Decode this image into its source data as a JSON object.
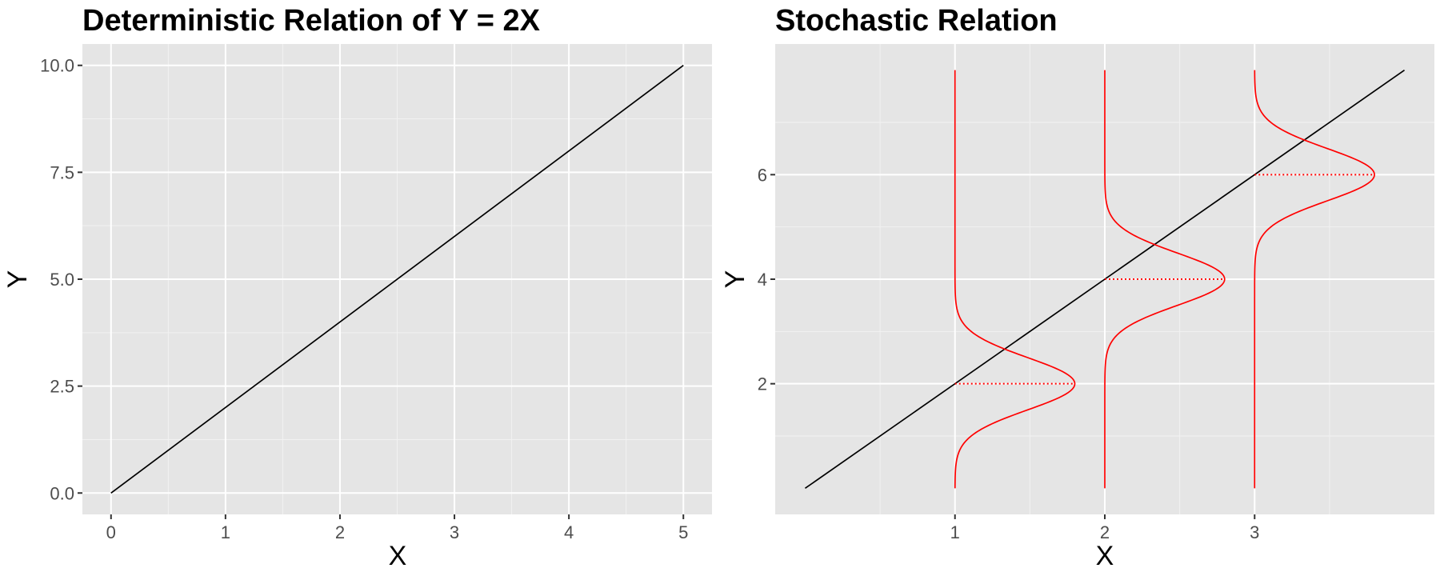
{
  "chart_data": [
    {
      "type": "line",
      "title": "Deterministic Relation of Y = 2X",
      "xlabel": "X",
      "ylabel": "Y",
      "xlim": [
        -0.25,
        5.25
      ],
      "ylim": [
        -0.5,
        10.5
      ],
      "x_ticks": [
        0,
        1,
        2,
        3,
        4,
        5
      ],
      "x_tick_labels": [
        "0",
        "1",
        "2",
        "3",
        "4",
        "5"
      ],
      "y_ticks": [
        0,
        2.5,
        5,
        7.5,
        10
      ],
      "y_tick_labels": [
        "0.0",
        "2.5",
        "5.0",
        "7.5",
        "10.0"
      ],
      "grid": true,
      "series": [
        {
          "x": [
            0,
            5
          ],
          "y": [
            0,
            10
          ],
          "color": "#000000"
        }
      ]
    },
    {
      "type": "line",
      "title": "Stochastic Relation",
      "xlabel": "X",
      "ylabel": "Y",
      "xlim": [
        -0.2,
        4.2
      ],
      "ylim": [
        -0.5,
        8.5
      ],
      "x_ticks": [
        1,
        2,
        3
      ],
      "x_tick_labels": [
        "1",
        "2",
        "3"
      ],
      "y_ticks": [
        2,
        4,
        6
      ],
      "y_tick_labels": [
        "2",
        "4",
        "6"
      ],
      "minor_x_ticks": [
        0.5,
        1.5,
        2.5,
        3.5
      ],
      "minor_y_ticks": [
        1,
        3,
        5,
        7
      ],
      "grid": true,
      "line": {
        "x": [
          0,
          4
        ],
        "y": [
          0,
          8
        ],
        "color": "#000000"
      },
      "densities": [
        {
          "x": 1,
          "mean": 2,
          "sd": 0.5,
          "y_range": [
            0,
            8
          ],
          "peak_width": 0.8,
          "color": "#ff0000"
        },
        {
          "x": 2,
          "mean": 4,
          "sd": 0.5,
          "y_range": [
            0,
            8
          ],
          "peak_width": 0.8,
          "color": "#ff0000"
        },
        {
          "x": 3,
          "mean": 6,
          "sd": 0.5,
          "y_range": [
            0,
            8
          ],
          "peak_width": 0.8,
          "color": "#ff0000"
        }
      ]
    }
  ]
}
